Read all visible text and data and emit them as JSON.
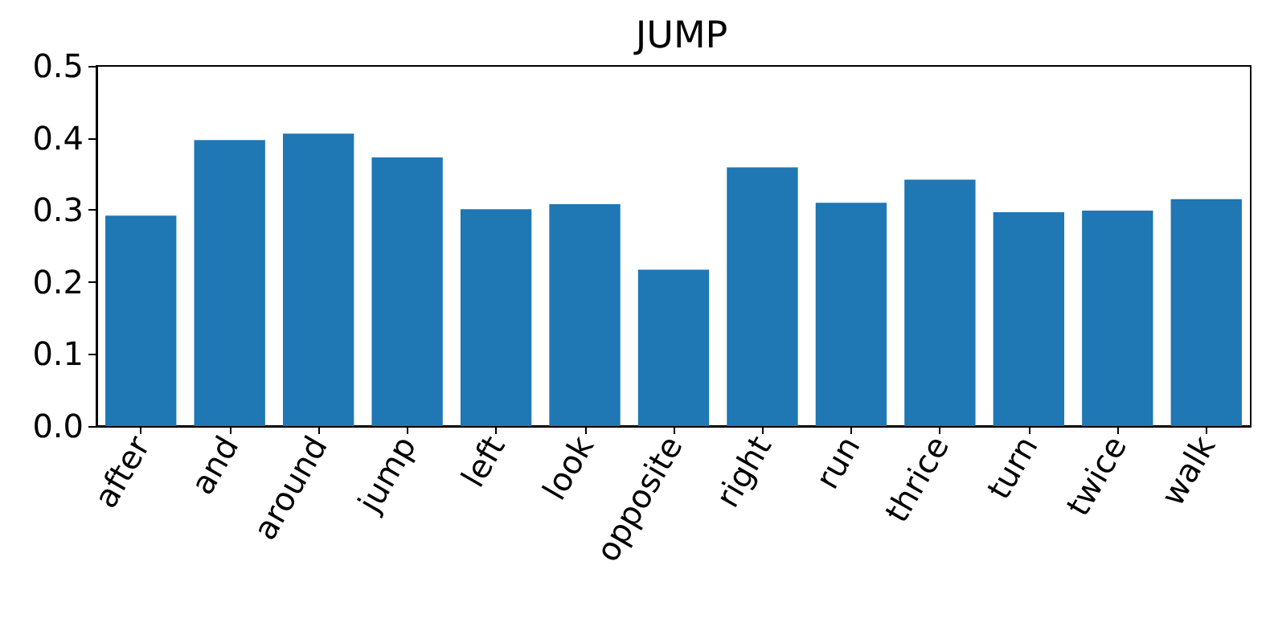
{
  "chart_data": {
    "type": "bar",
    "title": "JUMP",
    "categories": [
      "after",
      "and",
      "around",
      "jump",
      "left",
      "look",
      "opposite",
      "right",
      "run",
      "thrice",
      "turn",
      "twice",
      "walk"
    ],
    "values": [
      0.292,
      0.397,
      0.406,
      0.373,
      0.301,
      0.308,
      0.217,
      0.359,
      0.31,
      0.342,
      0.297,
      0.299,
      0.315
    ],
    "color": "#1f77b4",
    "ylim": [
      0,
      0.5
    ],
    "yticks": [
      {
        "value": 0,
        "label": "0.0"
      },
      0.1,
      0.2,
      0.3,
      0.4,
      0.5
    ],
    "grid": false
  }
}
